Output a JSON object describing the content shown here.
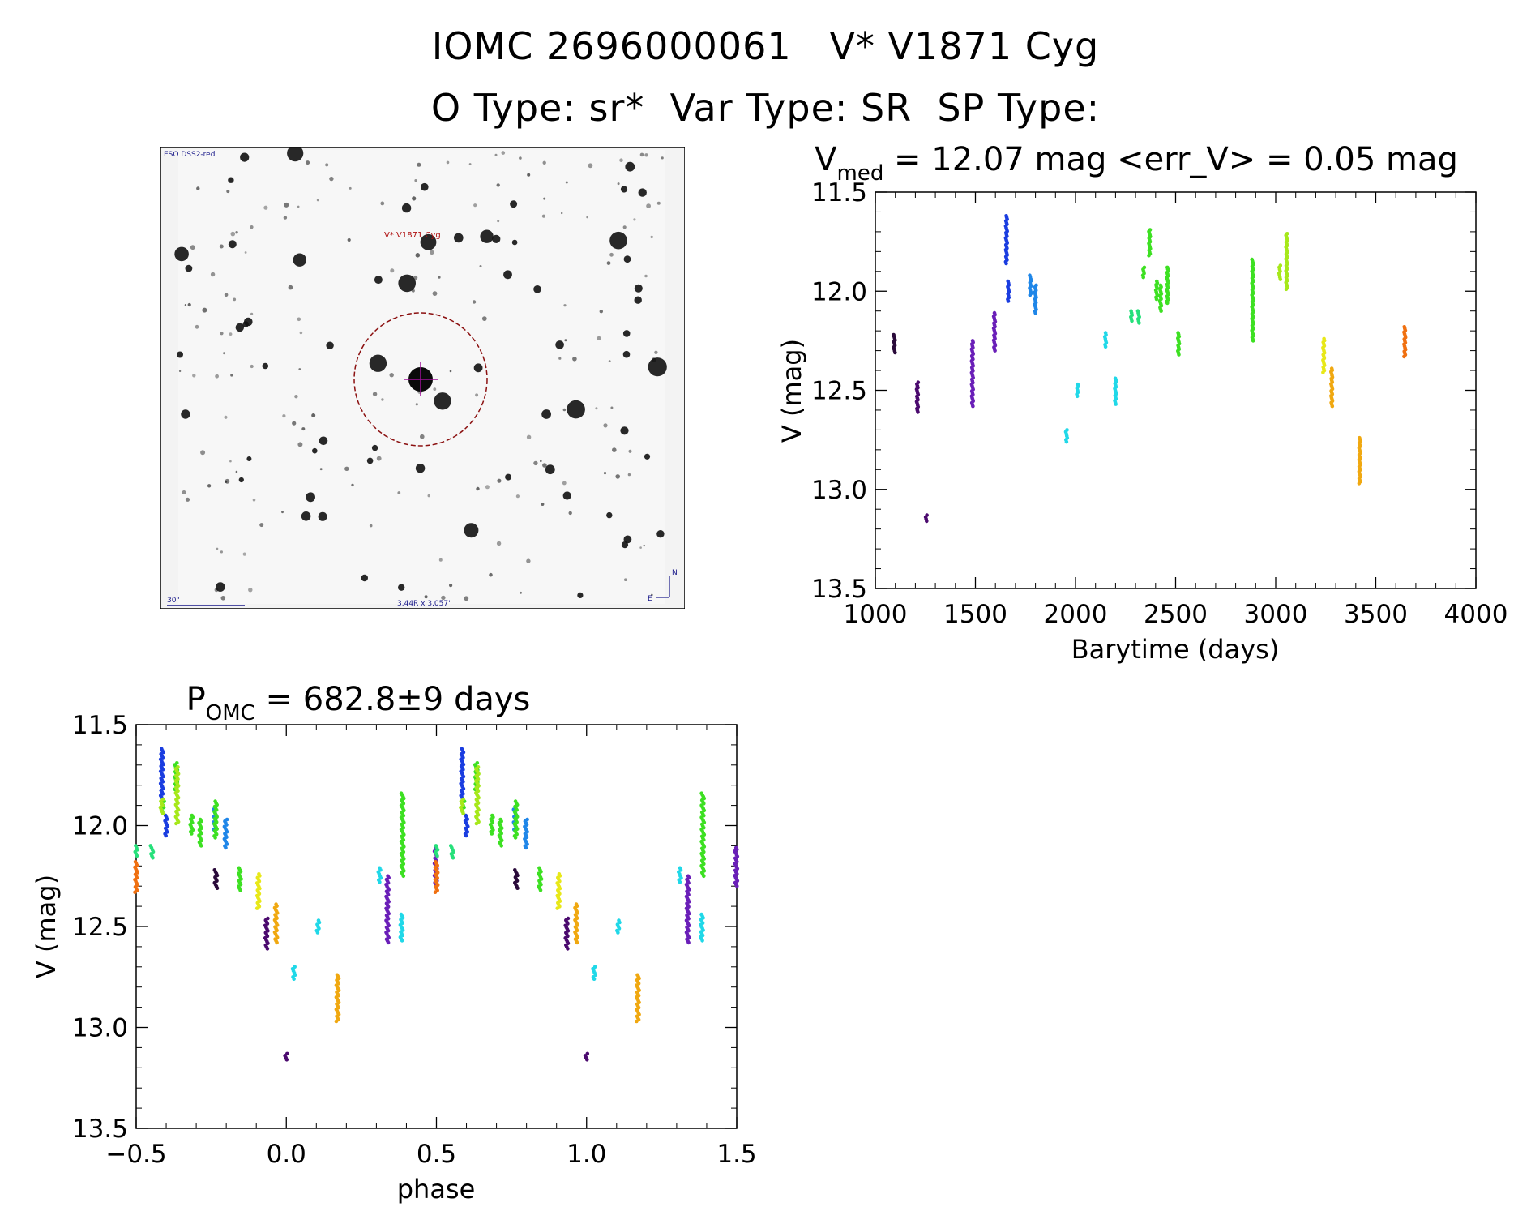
{
  "header": {
    "title": "IOMC 2696000061   V* V1871 Cyg",
    "subtitle": "O Type: sr*  Var Type: SR  SP Type:"
  },
  "finding_chart": {
    "survey_label": "ESO DSS2-red",
    "object_label": "V* V1871 Cyg",
    "scale_label": "30\"",
    "fov_label": "3.44R x 3.057'",
    "north_label": "N",
    "east_label": "E"
  },
  "colors": {
    "c1": "#2a0a3a",
    "c2": "#4b0a6e",
    "c3": "#6a1fb8",
    "c4": "#1a3de0",
    "c5": "#1f86e8",
    "c6": "#20d8e8",
    "c7": "#26e07a",
    "c8": "#3de022",
    "c9": "#a6e81a",
    "c10": "#e8e818",
    "c11": "#f0a810",
    "c12": "#f07010"
  },
  "chart_data": [
    {
      "type": "scatter",
      "name": "light-curve",
      "title_main": "V",
      "title_sub": "med",
      "title_rest": " = 12.07 mag <err_V> = 0.05 mag",
      "xlabel": "Barytime (days)",
      "ylabel": "V (mag)",
      "xlim": [
        1000,
        4000
      ],
      "ylim": [
        13.5,
        11.5
      ],
      "xticks": [
        "1000",
        "1500",
        "2000",
        "2500",
        "3000",
        "3500",
        "4000"
      ],
      "yticks": [
        "11.5",
        "12.0",
        "12.5",
        "13.0",
        "13.5"
      ],
      "groups": [
        {
          "t": 1095,
          "v": [
            12.22,
            12.31
          ],
          "c": "c1"
        },
        {
          "t": 1210,
          "v": [
            12.46,
            12.61
          ],
          "c": "c2"
        },
        {
          "t": 1255,
          "v": [
            13.13,
            13.16
          ],
          "c": "c2"
        },
        {
          "t": 1485,
          "v": [
            12.25,
            12.58
          ],
          "c": "c3"
        },
        {
          "t": 1595,
          "v": [
            12.11,
            12.3
          ],
          "c": "c3"
        },
        {
          "t": 1655,
          "v": [
            11.62,
            11.86
          ],
          "c": "c4"
        },
        {
          "t": 1665,
          "v": [
            11.95,
            12.05
          ],
          "c": "c4"
        },
        {
          "t": 1775,
          "v": [
            11.92,
            12.02
          ],
          "c": "c5"
        },
        {
          "t": 1800,
          "v": [
            11.97,
            12.11
          ],
          "c": "c5"
        },
        {
          "t": 1955,
          "v": [
            12.7,
            12.76
          ],
          "c": "c6"
        },
        {
          "t": 2010,
          "v": [
            12.47,
            12.53
          ],
          "c": "c6"
        },
        {
          "t": 2150,
          "v": [
            12.21,
            12.28
          ],
          "c": "c6"
        },
        {
          "t": 2200,
          "v": [
            12.44,
            12.57
          ],
          "c": "c6"
        },
        {
          "t": 2280,
          "v": [
            12.1,
            12.15
          ],
          "c": "c7"
        },
        {
          "t": 2315,
          "v": [
            12.1,
            12.16
          ],
          "c": "c7"
        },
        {
          "t": 2340,
          "v": [
            11.88,
            11.93
          ],
          "c": "c8"
        },
        {
          "t": 2370,
          "v": [
            11.69,
            11.82
          ],
          "c": "c8"
        },
        {
          "t": 2405,
          "v": [
            11.95,
            12.04
          ],
          "c": "c8"
        },
        {
          "t": 2425,
          "v": [
            11.97,
            12.1
          ],
          "c": "c8"
        },
        {
          "t": 2460,
          "v": [
            11.88,
            12.06
          ],
          "c": "c8"
        },
        {
          "t": 2515,
          "v": [
            12.21,
            12.32
          ],
          "c": "c8"
        },
        {
          "t": 2885,
          "v": [
            11.84,
            12.25
          ],
          "c": "c8"
        },
        {
          "t": 3020,
          "v": [
            11.87,
            11.94
          ],
          "c": "c9"
        },
        {
          "t": 3055,
          "v": [
            11.71,
            11.99
          ],
          "c": "c9"
        },
        {
          "t": 3240,
          "v": [
            12.24,
            12.41
          ],
          "c": "c10"
        },
        {
          "t": 3280,
          "v": [
            12.39,
            12.58
          ],
          "c": "c11"
        },
        {
          "t": 3420,
          "v": [
            12.74,
            12.97
          ],
          "c": "c11"
        },
        {
          "t": 3645,
          "v": [
            12.18,
            12.33
          ],
          "c": "c12"
        }
      ]
    },
    {
      "type": "scatter",
      "name": "phased-curve",
      "title_main": "P",
      "title_sub": "OMC",
      "title_rest": " = 682.8±9 days",
      "xlabel": "phase",
      "ylabel": "V (mag)",
      "xlim": [
        -0.5,
        1.5
      ],
      "ylim": [
        13.5,
        11.5
      ],
      "xticks": [
        "−0.5",
        "0.0",
        "0.5",
        "1.0",
        "1.5"
      ],
      "yticks": [
        "11.5",
        "12.0",
        "12.5",
        "13.0",
        "13.5"
      ],
      "period_days": 682.8,
      "epoch_days": 1255
    }
  ]
}
